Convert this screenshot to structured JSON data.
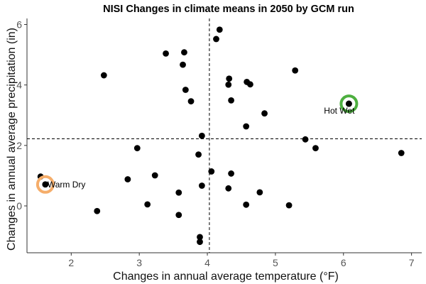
{
  "chart_data": {
    "type": "scatter",
    "title": "NISI Changes in climate means in 2050 by GCM run",
    "xlabel": "Changes in annual average temperature (°F)",
    "ylabel": "Changes in annual average precipitation (in)",
    "xlim": [
      1.35,
      7.15
    ],
    "ylim": [
      -1.55,
      6.2
    ],
    "xticks": [
      2,
      3,
      4,
      5,
      6,
      7
    ],
    "yticks": [
      0,
      2,
      4,
      6
    ],
    "grid": false,
    "reference_lines": {
      "x": 4.03,
      "y": 2.22
    },
    "points": [
      {
        "x": 2.48,
        "y": 4.32
      },
      {
        "x": 3.39,
        "y": 5.04
      },
      {
        "x": 3.66,
        "y": 5.08
      },
      {
        "x": 3.64,
        "y": 4.67
      },
      {
        "x": 3.68,
        "y": 3.84
      },
      {
        "x": 3.76,
        "y": 3.46
      },
      {
        "x": 4.18,
        "y": 5.83
      },
      {
        "x": 4.13,
        "y": 5.52
      },
      {
        "x": 4.32,
        "y": 4.21
      },
      {
        "x": 4.31,
        "y": 4.01
      },
      {
        "x": 4.58,
        "y": 4.1
      },
      {
        "x": 4.63,
        "y": 4.02
      },
      {
        "x": 4.35,
        "y": 3.49
      },
      {
        "x": 5.29,
        "y": 4.48
      },
      {
        "x": 4.84,
        "y": 3.06
      },
      {
        "x": 4.57,
        "y": 2.63
      },
      {
        "x": 3.92,
        "y": 2.32
      },
      {
        "x": 2.97,
        "y": 1.91
      },
      {
        "x": 3.87,
        "y": 1.7
      },
      {
        "x": 5.44,
        "y": 2.2
      },
      {
        "x": 5.59,
        "y": 1.91
      },
      {
        "x": 6.85,
        "y": 1.75
      },
      {
        "x": 6.08,
        "y": 3.38
      },
      {
        "x": 1.55,
        "y": 0.97
      },
      {
        "x": 1.62,
        "y": 0.71
      },
      {
        "x": 2.83,
        "y": 0.88
      },
      {
        "x": 3.23,
        "y": 1.01
      },
      {
        "x": 4.06,
        "y": 1.14
      },
      {
        "x": 4.35,
        "y": 1.07
      },
      {
        "x": 3.92,
        "y": 0.67
      },
      {
        "x": 4.31,
        "y": 0.58
      },
      {
        "x": 3.58,
        "y": 0.44
      },
      {
        "x": 4.77,
        "y": 0.45
      },
      {
        "x": 3.12,
        "y": 0.05
      },
      {
        "x": 4.57,
        "y": 0.04
      },
      {
        "x": 5.2,
        "y": 0.02
      },
      {
        "x": 2.38,
        "y": -0.17
      },
      {
        "x": 3.58,
        "y": -0.3
      },
      {
        "x": 3.89,
        "y": -1.03
      },
      {
        "x": 3.89,
        "y": -1.19
      }
    ],
    "highlights": [
      {
        "label": "Hot Wet",
        "x": 6.08,
        "y": 3.38,
        "color": "#4daf3f"
      },
      {
        "label": "Warm Dry",
        "x": 1.62,
        "y": 0.71,
        "color": "#f5ad6a"
      }
    ]
  }
}
